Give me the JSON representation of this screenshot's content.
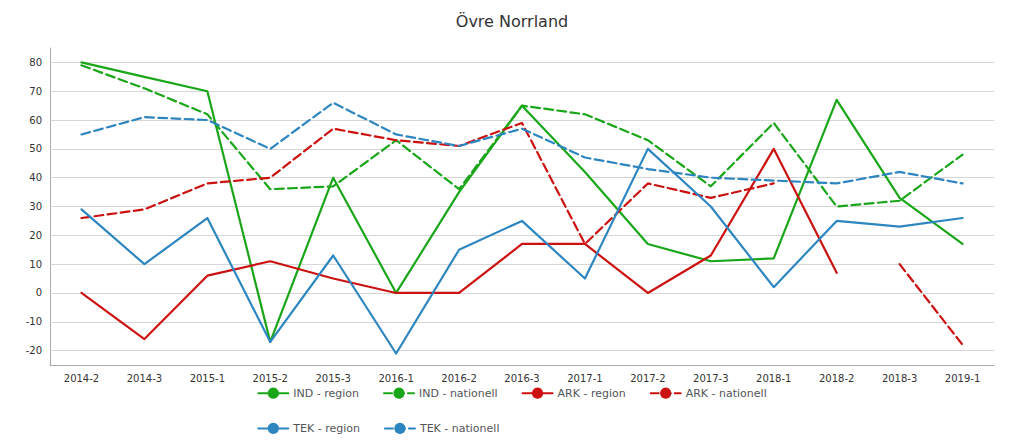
{
  "chart_data": {
    "type": "line",
    "title": "Övre Norrland",
    "categories": [
      "2014-2",
      "2014-3",
      "2015-1",
      "2015-2",
      "2015-3",
      "2016-1",
      "2016-2",
      "2016-3",
      "2017-1",
      "2017-2",
      "2017-3",
      "2018-1",
      "2018-2",
      "2018-3",
      "2019-1"
    ],
    "series": [
      {
        "name": "IND - region",
        "color": "#1AA619",
        "line_style": "solid",
        "values": [
          80,
          75,
          70,
          -17,
          40,
          0,
          35,
          65,
          42,
          17,
          11,
          12,
          67,
          33,
          17
        ]
      },
      {
        "name": "IND - nationell",
        "color": "#1AA619",
        "line_style": "dashed",
        "values": [
          79,
          71,
          62,
          36,
          37,
          53,
          36,
          65,
          62,
          53,
          37,
          59,
          30,
          32,
          48
        ]
      },
      {
        "name": "ARK - region",
        "color": "#CC1111",
        "line_style": "solid",
        "values": [
          0,
          -16,
          6,
          11,
          5,
          0,
          0,
          17,
          17,
          0,
          13,
          50,
          7,
          null,
          null
        ]
      },
      {
        "name": "ARK - nationell",
        "color": "#CC1111",
        "line_style": "dashed",
        "values": [
          26,
          29,
          38,
          40,
          57,
          53,
          51,
          59,
          17,
          38,
          33,
          38,
          null,
          10,
          -18
        ]
      },
      {
        "name": "TEK - region",
        "color": "#2E86C1",
        "line_style": "solid",
        "values": [
          29,
          10,
          26,
          -17,
          13,
          -21,
          15,
          25,
          5,
          50,
          30,
          2,
          25,
          23,
          26
        ]
      },
      {
        "name": "TEK - nationell",
        "color": "#2E86C1",
        "line_style": "dashed",
        "values": [
          55,
          61,
          60,
          50,
          66,
          55,
          51,
          57,
          47,
          43,
          40,
          39,
          38,
          42,
          38
        ]
      }
    ],
    "ylim": [
      -25,
      85
    ],
    "yticks": [
      -20,
      -10,
      0,
      10,
      20,
      30,
      40,
      50,
      60,
      70,
      80
    ],
    "grid": true,
    "legend": "bottom"
  }
}
